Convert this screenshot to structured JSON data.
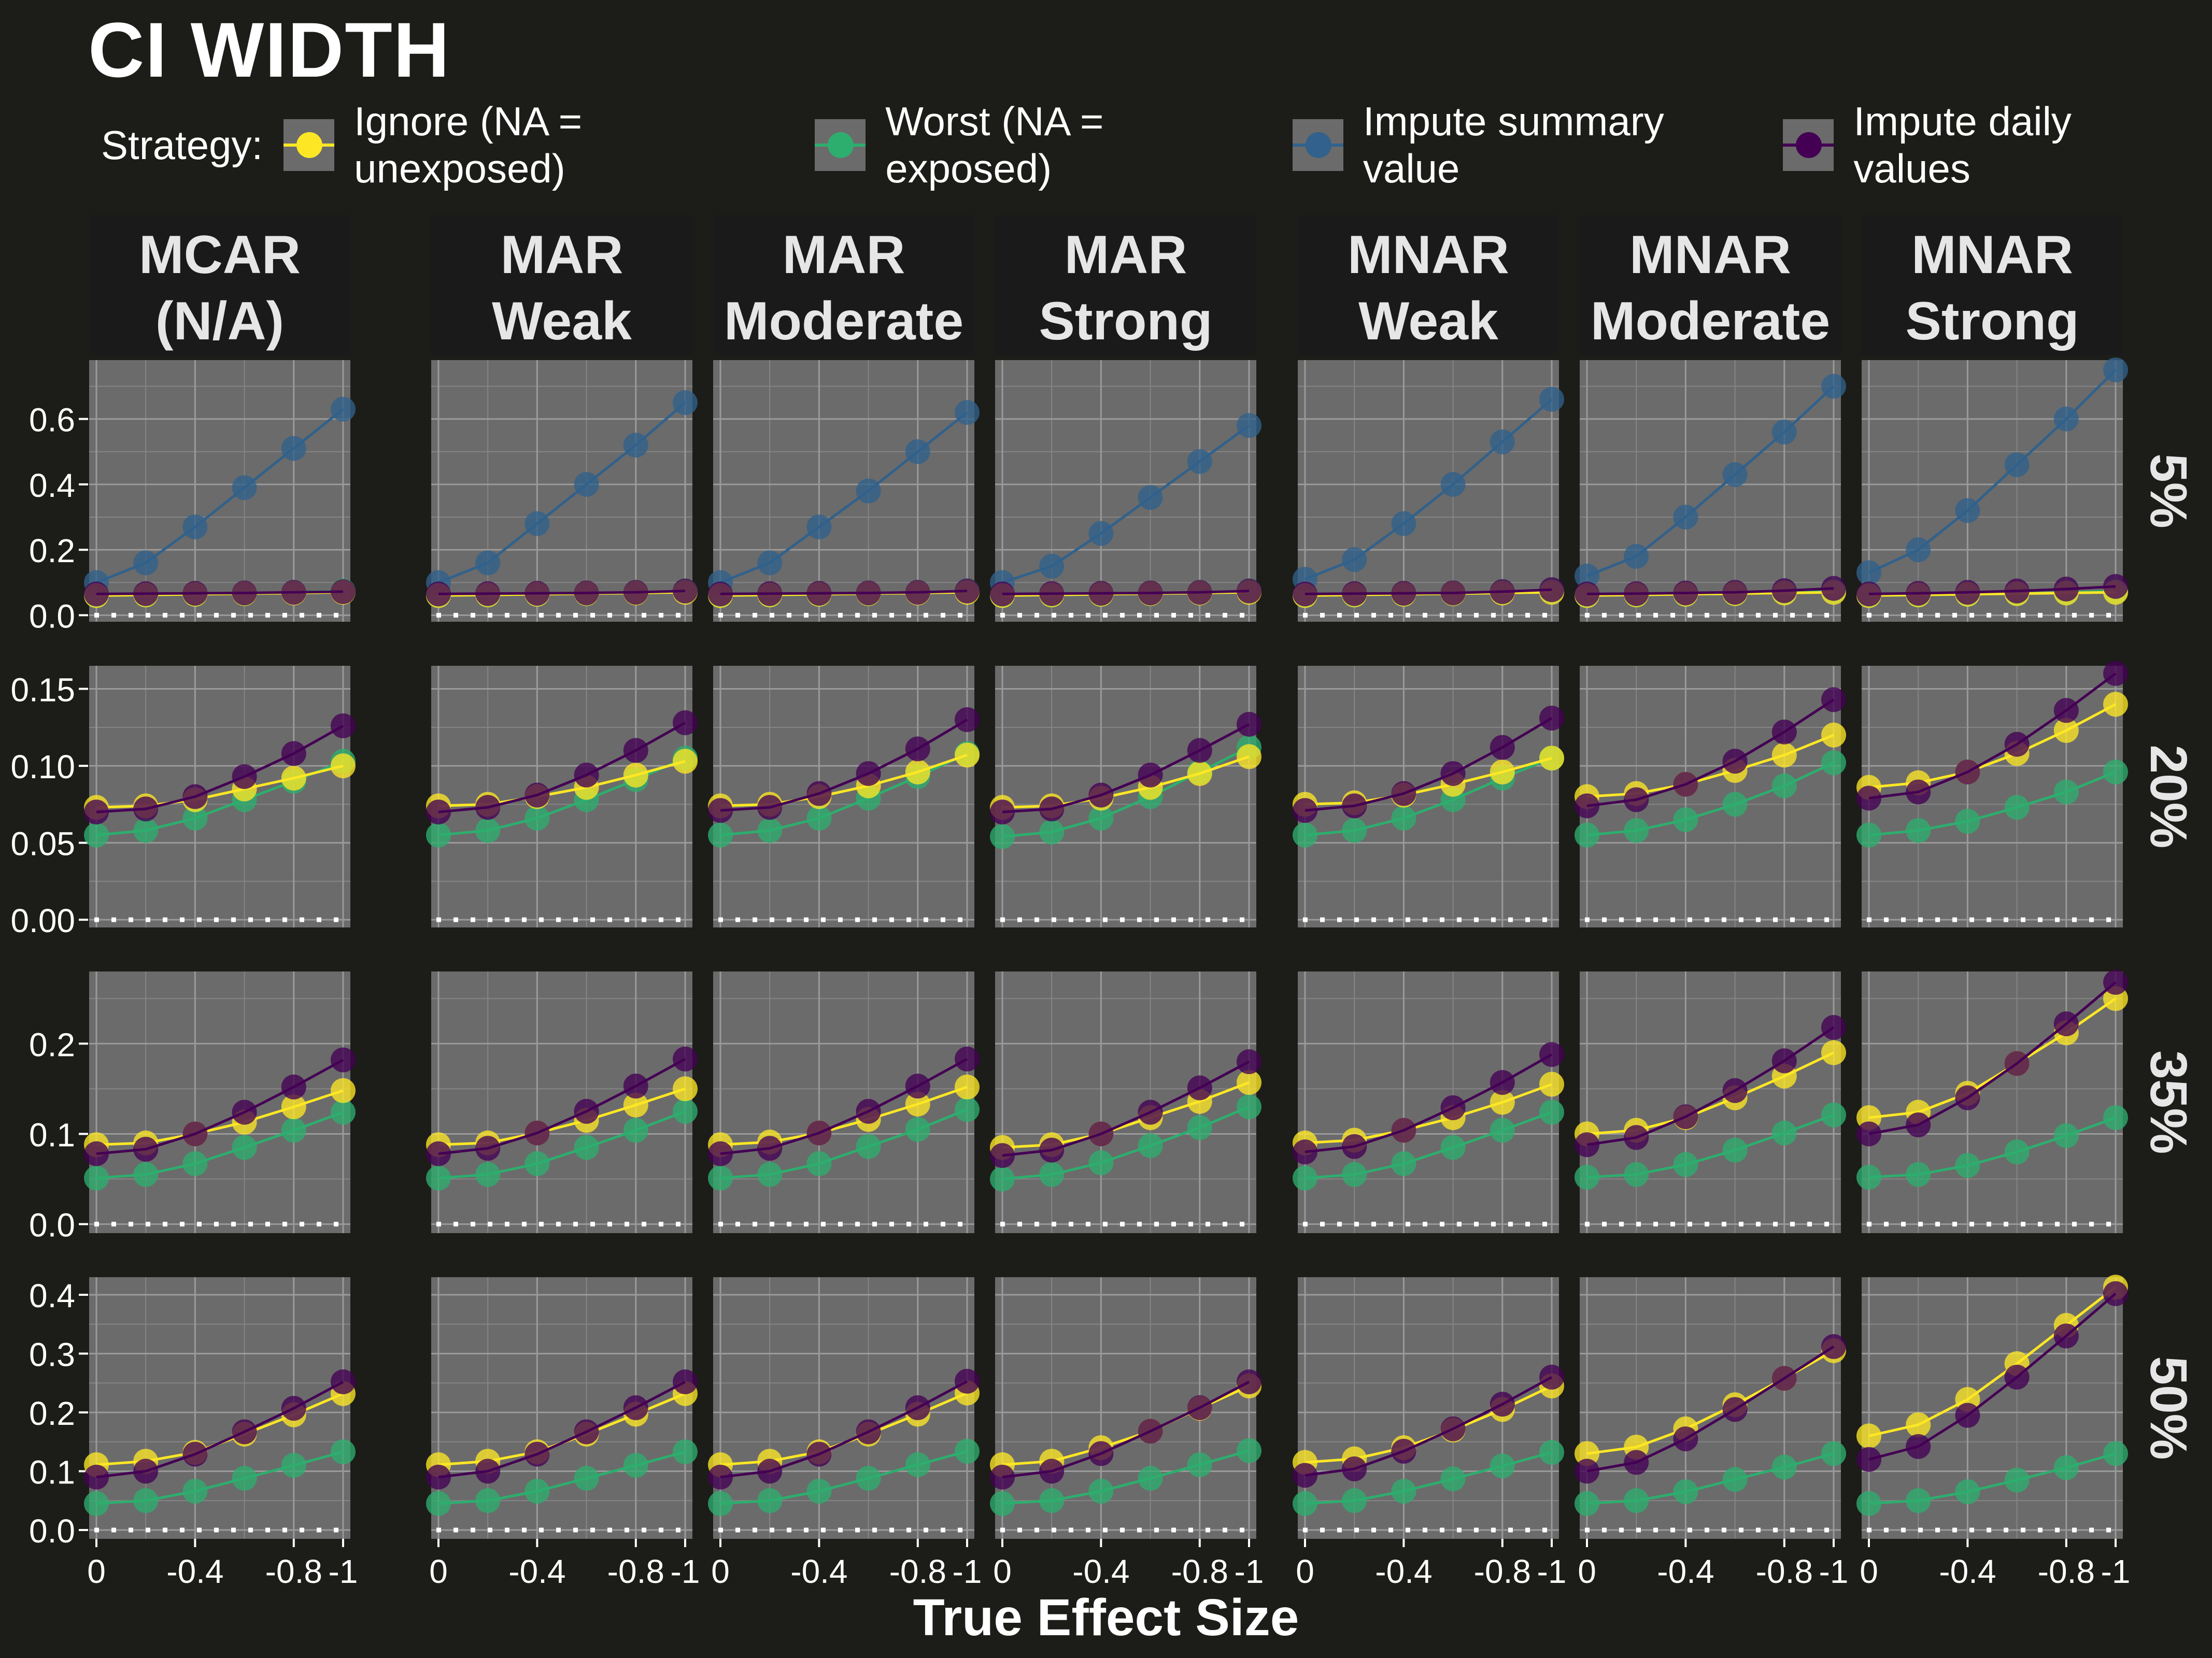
{
  "title": "CI WIDTH",
  "legend": {
    "title": "Strategy:",
    "items": [
      {
        "label": "Ignore (NA = unexposed)",
        "color": "#fde725"
      },
      {
        "label": "Worst (NA = exposed)",
        "color": "#2dae6e"
      },
      {
        "label": "Impute summary value",
        "color": "#31618c"
      },
      {
        "label": "Impute daily values",
        "color": "#440154"
      }
    ]
  },
  "chart_data": {
    "type": "line",
    "title": "CI WIDTH",
    "xlabel": "True Effect Size",
    "x": [
      0,
      -0.2,
      -0.4,
      -0.6,
      -0.8,
      -1.0
    ],
    "x_ticks": [
      0,
      -0.4,
      -0.8,
      -1
    ],
    "x_tick_labels": [
      "0",
      "-0.4",
      "-0.8",
      "-1"
    ],
    "columns": [
      {
        "line1": "MCAR",
        "line2": "(N/A)"
      },
      {
        "line1": "MAR",
        "line2": "Weak"
      },
      {
        "line1": "MAR",
        "line2": "Moderate"
      },
      {
        "line1": "MAR",
        "line2": "Strong"
      },
      {
        "line1": "MNAR",
        "line2": "Weak"
      },
      {
        "line1": "MNAR",
        "line2": "Moderate"
      },
      {
        "line1": "MNAR",
        "line2": "Strong"
      }
    ],
    "rows": [
      {
        "label": "5%",
        "ylim": [
          -0.02,
          0.78
        ],
        "y_ticks": [
          0,
          0.2,
          0.4,
          0.6
        ],
        "y_tick_labels": [
          "0.0",
          "0.2",
          "0.4",
          "0.6"
        ]
      },
      {
        "label": "20%",
        "ylim": [
          -0.005,
          0.165
        ],
        "y_ticks": [
          0,
          0.05,
          0.1,
          0.15
        ],
        "y_tick_labels": [
          "0.00",
          "0.05",
          "0.10",
          "0.15"
        ]
      },
      {
        "label": "35%",
        "ylim": [
          -0.01,
          0.28
        ],
        "y_ticks": [
          0,
          0.1,
          0.2
        ],
        "y_tick_labels": [
          "0.0",
          "0.1",
          "0.2"
        ]
      },
      {
        "label": "50%",
        "ylim": [
          -0.015,
          0.43
        ],
        "y_ticks": [
          0,
          0.1,
          0.2,
          0.3,
          0.4
        ],
        "y_tick_labels": [
          "0.0",
          "0.1",
          "0.2",
          "0.3",
          "0.4"
        ]
      }
    ],
    "series_order": [
      "Worst (NA = exposed)",
      "Impute summary value",
      "Ignore (NA = unexposed)",
      "Impute daily values"
    ],
    "panels": [
      [
        {
          "Ignore (NA = unexposed)": [
            0.06,
            0.062,
            0.064,
            0.066,
            0.068,
            0.07
          ],
          "Worst (NA = exposed)": [
            0.06,
            0.062,
            0.064,
            0.066,
            0.07,
            0.074
          ],
          "Impute summary value": [
            0.1,
            0.16,
            0.27,
            0.39,
            0.51,
            0.63
          ],
          "Impute daily values": [
            0.065,
            0.066,
            0.067,
            0.068,
            0.07,
            0.072
          ]
        },
        {
          "Ignore (NA = unexposed)": [
            0.06,
            0.062,
            0.064,
            0.066,
            0.068,
            0.07
          ],
          "Worst (NA = exposed)": [
            0.06,
            0.062,
            0.064,
            0.066,
            0.07,
            0.074
          ],
          "Impute summary value": [
            0.1,
            0.16,
            0.28,
            0.4,
            0.52,
            0.65
          ],
          "Impute daily values": [
            0.065,
            0.066,
            0.067,
            0.068,
            0.07,
            0.074
          ]
        },
        {
          "Ignore (NA = unexposed)": [
            0.06,
            0.062,
            0.064,
            0.066,
            0.068,
            0.07
          ],
          "Worst (NA = exposed)": [
            0.06,
            0.062,
            0.064,
            0.066,
            0.07,
            0.074
          ],
          "Impute summary value": [
            0.1,
            0.16,
            0.27,
            0.38,
            0.5,
            0.62
          ],
          "Impute daily values": [
            0.065,
            0.066,
            0.067,
            0.068,
            0.07,
            0.074
          ]
        },
        {
          "Ignore (NA = unexposed)": [
            0.06,
            0.062,
            0.064,
            0.066,
            0.068,
            0.07
          ],
          "Worst (NA = exposed)": [
            0.06,
            0.062,
            0.064,
            0.066,
            0.07,
            0.074
          ],
          "Impute summary value": [
            0.1,
            0.15,
            0.25,
            0.36,
            0.47,
            0.58
          ],
          "Impute daily values": [
            0.065,
            0.066,
            0.067,
            0.068,
            0.07,
            0.074
          ]
        },
        {
          "Ignore (NA = unexposed)": [
            0.06,
            0.062,
            0.064,
            0.066,
            0.068,
            0.07
          ],
          "Worst (NA = exposed)": [
            0.06,
            0.062,
            0.064,
            0.066,
            0.07,
            0.074
          ],
          "Impute summary value": [
            0.11,
            0.17,
            0.28,
            0.4,
            0.53,
            0.66
          ],
          "Impute daily values": [
            0.065,
            0.066,
            0.067,
            0.068,
            0.072,
            0.078
          ]
        },
        {
          "Ignore (NA = unexposed)": [
            0.06,
            0.062,
            0.064,
            0.066,
            0.068,
            0.07
          ],
          "Worst (NA = exposed)": [
            0.06,
            0.062,
            0.064,
            0.066,
            0.07,
            0.074
          ],
          "Impute summary value": [
            0.12,
            0.18,
            0.3,
            0.43,
            0.56,
            0.7
          ],
          "Impute daily values": [
            0.065,
            0.066,
            0.068,
            0.07,
            0.075,
            0.082
          ]
        },
        {
          "Ignore (NA = unexposed)": [
            0.06,
            0.062,
            0.064,
            0.066,
            0.068,
            0.07
          ],
          "Worst (NA = exposed)": [
            0.06,
            0.062,
            0.064,
            0.066,
            0.07,
            0.074
          ],
          "Impute summary value": [
            0.13,
            0.2,
            0.32,
            0.46,
            0.6,
            0.75
          ],
          "Impute daily values": [
            0.065,
            0.067,
            0.07,
            0.074,
            0.08,
            0.088
          ]
        }
      ],
      [
        {
          "Ignore (NA = unexposed)": [
            0.073,
            0.074,
            0.078,
            0.085,
            0.092,
            0.1
          ],
          "Worst (NA = exposed)": [
            0.055,
            0.058,
            0.066,
            0.078,
            0.09,
            0.103
          ],
          "Impute summary value": [],
          "Impute daily values": [
            0.07,
            0.072,
            0.08,
            0.093,
            0.108,
            0.126
          ]
        },
        {
          "Ignore (NA = unexposed)": [
            0.074,
            0.075,
            0.08,
            0.086,
            0.094,
            0.103
          ],
          "Worst (NA = exposed)": [
            0.055,
            0.058,
            0.066,
            0.078,
            0.091,
            0.105
          ],
          "Impute summary value": [],
          "Impute daily values": [
            0.07,
            0.073,
            0.081,
            0.094,
            0.11,
            0.128
          ]
        },
        {
          "Ignore (NA = unexposed)": [
            0.074,
            0.075,
            0.08,
            0.087,
            0.096,
            0.107
          ],
          "Worst (NA = exposed)": [
            0.055,
            0.058,
            0.066,
            0.079,
            0.093,
            0.108
          ],
          "Impute summary value": [],
          "Impute daily values": [
            0.071,
            0.073,
            0.082,
            0.095,
            0.111,
            0.13
          ]
        },
        {
          "Ignore (NA = unexposed)": [
            0.073,
            0.074,
            0.079,
            0.086,
            0.095,
            0.106
          ],
          "Worst (NA = exposed)": [
            0.054,
            0.057,
            0.066,
            0.08,
            0.096,
            0.112
          ],
          "Impute summary value": [],
          "Impute daily values": [
            0.07,
            0.072,
            0.081,
            0.094,
            0.11,
            0.127
          ]
        },
        {
          "Ignore (NA = unexposed)": [
            0.075,
            0.076,
            0.081,
            0.088,
            0.096,
            0.105
          ],
          "Worst (NA = exposed)": [
            0.055,
            0.058,
            0.066,
            0.078,
            0.092,
            0.105
          ],
          "Impute summary value": [],
          "Impute daily values": [
            0.071,
            0.074,
            0.082,
            0.095,
            0.112,
            0.131
          ]
        },
        {
          "Ignore (NA = unexposed)": [
            0.08,
            0.082,
            0.088,
            0.097,
            0.107,
            0.12
          ],
          "Worst (NA = exposed)": [
            0.055,
            0.058,
            0.065,
            0.075,
            0.087,
            0.102
          ],
          "Impute summary value": [],
          "Impute daily values": [
            0.074,
            0.078,
            0.088,
            0.103,
            0.122,
            0.143
          ]
        },
        {
          "Ignore (NA = unexposed)": [
            0.086,
            0.089,
            0.096,
            0.108,
            0.123,
            0.14
          ],
          "Worst (NA = exposed)": [
            0.055,
            0.058,
            0.064,
            0.073,
            0.083,
            0.096
          ],
          "Impute summary value": [],
          "Impute daily values": [
            0.079,
            0.083,
            0.096,
            0.114,
            0.136,
            0.16
          ]
        }
      ],
      [
        {
          "Ignore (NA = unexposed)": [
            0.088,
            0.09,
            0.1,
            0.113,
            0.13,
            0.148
          ],
          "Worst (NA = exposed)": [
            0.051,
            0.055,
            0.067,
            0.085,
            0.104,
            0.124
          ],
          "Impute summary value": [],
          "Impute daily values": [
            0.078,
            0.083,
            0.1,
            0.124,
            0.152,
            0.182
          ]
        },
        {
          "Ignore (NA = unexposed)": [
            0.088,
            0.09,
            0.101,
            0.115,
            0.132,
            0.15
          ],
          "Worst (NA = exposed)": [
            0.051,
            0.055,
            0.067,
            0.085,
            0.104,
            0.125
          ],
          "Impute summary value": [],
          "Impute daily values": [
            0.078,
            0.084,
            0.101,
            0.125,
            0.153,
            0.183
          ]
        },
        {
          "Ignore (NA = unexposed)": [
            0.088,
            0.091,
            0.101,
            0.116,
            0.133,
            0.152
          ],
          "Worst (NA = exposed)": [
            0.051,
            0.055,
            0.067,
            0.086,
            0.105,
            0.127
          ],
          "Impute summary value": [],
          "Impute daily values": [
            0.078,
            0.084,
            0.101,
            0.125,
            0.153,
            0.183
          ]
        },
        {
          "Ignore (NA = unexposed)": [
            0.085,
            0.088,
            0.1,
            0.118,
            0.136,
            0.157
          ],
          "Worst (NA = exposed)": [
            0.05,
            0.055,
            0.068,
            0.087,
            0.107,
            0.13
          ],
          "Impute summary value": [],
          "Impute daily values": [
            0.076,
            0.082,
            0.1,
            0.124,
            0.151,
            0.18
          ]
        },
        {
          "Ignore (NA = unexposed)": [
            0.09,
            0.093,
            0.104,
            0.118,
            0.135,
            0.155
          ],
          "Worst (NA = exposed)": [
            0.051,
            0.055,
            0.067,
            0.085,
            0.104,
            0.124
          ],
          "Impute summary value": [],
          "Impute daily values": [
            0.08,
            0.086,
            0.104,
            0.129,
            0.157,
            0.188
          ]
        },
        {
          "Ignore (NA = unexposed)": [
            0.1,
            0.104,
            0.118,
            0.14,
            0.164,
            0.19
          ],
          "Worst (NA = exposed)": [
            0.052,
            0.055,
            0.066,
            0.082,
            0.101,
            0.121
          ],
          "Impute summary value": [],
          "Impute daily values": [
            0.088,
            0.096,
            0.119,
            0.148,
            0.181,
            0.218
          ]
        },
        {
          "Ignore (NA = unexposed)": [
            0.118,
            0.124,
            0.145,
            0.178,
            0.212,
            0.25
          ],
          "Worst (NA = exposed)": [
            0.052,
            0.055,
            0.065,
            0.08,
            0.098,
            0.118
          ],
          "Impute summary value": [],
          "Impute daily values": [
            0.1,
            0.11,
            0.14,
            0.178,
            0.222,
            0.268
          ]
        }
      ],
      [
        {
          "Ignore (NA = unexposed)": [
            0.111,
            0.117,
            0.132,
            0.163,
            0.196,
            0.232
          ],
          "Worst (NA = exposed)": [
            0.045,
            0.05,
            0.066,
            0.088,
            0.11,
            0.133
          ],
          "Impute summary value": [],
          "Impute daily values": [
            0.09,
            0.1,
            0.129,
            0.167,
            0.207,
            0.252
          ]
        },
        {
          "Ignore (NA = unexposed)": [
            0.111,
            0.117,
            0.133,
            0.163,
            0.197,
            0.232
          ],
          "Worst (NA = exposed)": [
            0.045,
            0.05,
            0.066,
            0.088,
            0.11,
            0.133
          ],
          "Impute summary value": [],
          "Impute daily values": [
            0.09,
            0.1,
            0.129,
            0.167,
            0.208,
            0.252
          ]
        },
        {
          "Ignore (NA = unexposed)": [
            0.111,
            0.117,
            0.133,
            0.163,
            0.197,
            0.233
          ],
          "Worst (NA = exposed)": [
            0.045,
            0.05,
            0.066,
            0.088,
            0.111,
            0.134
          ],
          "Impute summary value": [],
          "Impute daily values": [
            0.09,
            0.1,
            0.129,
            0.167,
            0.208,
            0.253
          ]
        },
        {
          "Ignore (NA = unexposed)": [
            0.111,
            0.117,
            0.14,
            0.168,
            0.207,
            0.245
          ],
          "Worst (NA = exposed)": [
            0.045,
            0.05,
            0.066,
            0.088,
            0.111,
            0.135
          ],
          "Impute summary value": [],
          "Impute daily values": [
            0.09,
            0.1,
            0.13,
            0.168,
            0.208,
            0.252
          ]
        },
        {
          "Ignore (NA = unexposed)": [
            0.115,
            0.121,
            0.14,
            0.17,
            0.205,
            0.245
          ],
          "Worst (NA = exposed)": [
            0.045,
            0.05,
            0.066,
            0.087,
            0.109,
            0.132
          ],
          "Impute summary value": [],
          "Impute daily values": [
            0.093,
            0.104,
            0.134,
            0.172,
            0.214,
            0.26
          ]
        },
        {
          "Ignore (NA = unexposed)": [
            0.13,
            0.141,
            0.172,
            0.213,
            0.258,
            0.305
          ],
          "Worst (NA = exposed)": [
            0.045,
            0.05,
            0.065,
            0.086,
            0.107,
            0.13
          ],
          "Impute summary value": [],
          "Impute daily values": [
            0.1,
            0.115,
            0.155,
            0.205,
            0.258,
            0.312
          ]
        },
        {
          "Ignore (NA = unexposed)": [
            0.16,
            0.179,
            0.222,
            0.283,
            0.348,
            0.413
          ],
          "Worst (NA = exposed)": [
            0.045,
            0.05,
            0.065,
            0.085,
            0.106,
            0.13
          ],
          "Impute summary value": [],
          "Impute daily values": [
            0.12,
            0.142,
            0.195,
            0.26,
            0.33,
            0.402
          ]
        }
      ]
    ]
  }
}
